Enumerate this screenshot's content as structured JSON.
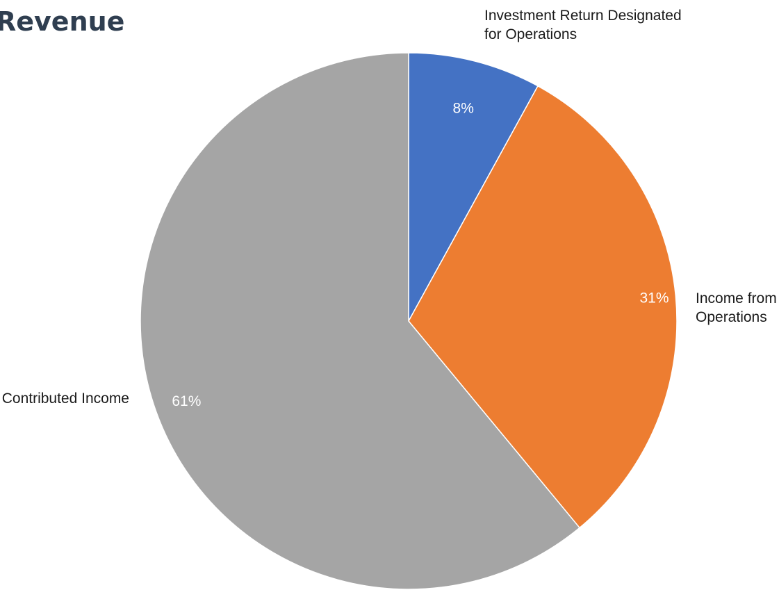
{
  "chart_data": {
    "type": "pie",
    "title": "Revenue",
    "categories": [
      "Investment Return Designated for Operations",
      "Income from Operations",
      "Contributed Income"
    ],
    "values": [
      8,
      31,
      61
    ],
    "percent_labels": [
      "8%",
      "31%",
      "61%"
    ],
    "label_lines": [
      [
        "Investment Return Designated",
        "for Operations"
      ],
      [
        "Income from",
        "Operations"
      ],
      [
        "Contributed Income"
      ]
    ],
    "colors": [
      "#4472c4",
      "#ed7d31",
      "#a5a5a5"
    ],
    "start_angle": "12 o'clock",
    "direction": "clockwise",
    "legend": "none"
  }
}
